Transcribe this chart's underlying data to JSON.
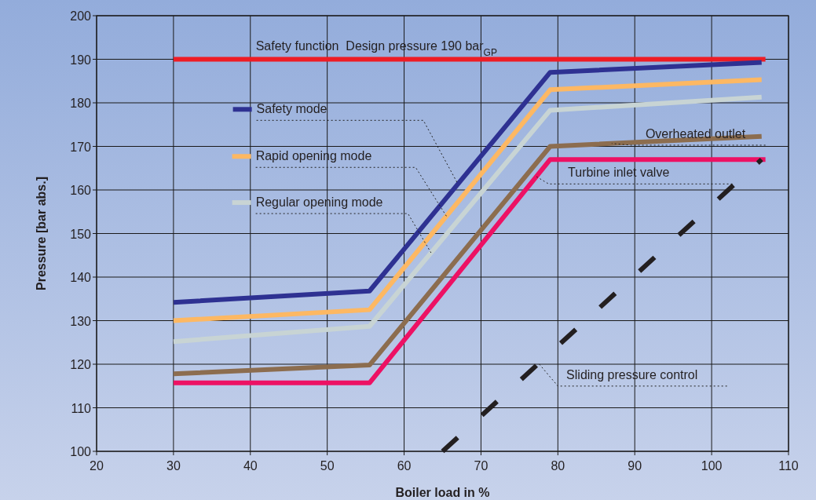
{
  "chart_data": {
    "type": "line",
    "xlabel": "Boiler load in %",
    "ylabel": "Pressure [bar abs.]",
    "xlim": [
      20,
      110
    ],
    "xticks": [
      20,
      30,
      40,
      50,
      60,
      70,
      80,
      90,
      100,
      110
    ],
    "ylim": [
      100,
      200
    ],
    "yticks": [
      100,
      110,
      120,
      130,
      140,
      150,
      160,
      170,
      180,
      190,
      200
    ],
    "grid": true,
    "legend": "top left",
    "marker": "none",
    "series": [
      {
        "name": "Safety function  Design pressure 190 bar$_{GP}$",
        "color": "#ee1c25",
        "x": [
          30,
          107
        ],
        "values": [
          190,
          190
        ]
      },
      {
        "name": "Safety mode",
        "color": "#2e3192",
        "x": [
          30,
          55.5,
          79,
          106.5
        ],
        "values": [
          134.2,
          136.8,
          187,
          189.3
        ]
      },
      {
        "name": "Rapid opening mode",
        "color": "#fdb863",
        "x": [
          30,
          55.5,
          79,
          106.5
        ],
        "values": [
          130,
          132.5,
          183,
          185.3
        ]
      },
      {
        "name": "Regular opening mode",
        "color": "#c8d4d4",
        "x": [
          30,
          55.5,
          79,
          106.5
        ],
        "values": [
          125.2,
          128.7,
          178.3,
          181.3
        ]
      },
      {
        "name": "Overheated outlet",
        "color": "#8c6d4f",
        "x": [
          30,
          55.5,
          79,
          106.5
        ],
        "values": [
          117.8,
          119.8,
          170,
          172.3
        ]
      },
      {
        "name": "Turbine inlet valve",
        "color": "#ed1164",
        "x": [
          30,
          55.5,
          79,
          107
        ],
        "values": [
          115.7,
          115.7,
          167,
          167
        ]
      },
      {
        "name": "Sliding pressure control",
        "color": "#231f20",
        "line_style": "dashed",
        "x": [
          65,
          106.5
        ],
        "values": [
          100,
          167
        ]
      }
    ]
  }
}
